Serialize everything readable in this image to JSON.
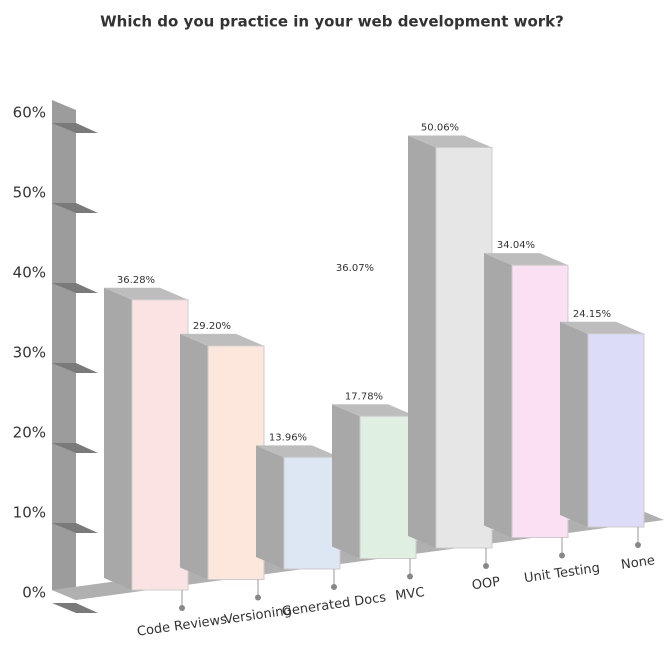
{
  "chart_data": {
    "type": "bar3d",
    "title": "Which do you practice in your web development work?",
    "categories": [
      "Code Reviews",
      "Versioning",
      "Generated Docs",
      "MVC",
      "OOP",
      "Unit Testing",
      "None"
    ],
    "values": [
      36.28,
      29.2,
      13.96,
      17.78,
      50.06,
      34.04,
      24.15
    ],
    "value_labels": [
      "36.28%",
      "29.20%",
      "13.96%",
      "17.78%",
      "50.06%",
      "34.04%",
      "24.15%"
    ],
    "colors": [
      "#fbe3e3",
      "#fde6dc",
      "#dde6f3",
      "#dff0e3",
      "#e6e6e6",
      "#fbdff2",
      "#dcdcf8"
    ],
    "annotations": [
      "36.07%"
    ],
    "ylim": [
      0,
      60
    ],
    "yticks": [
      {
        "value": 0,
        "label": "0%"
      },
      {
        "value": 10,
        "label": "10%"
      },
      {
        "value": 20,
        "label": "20%"
      },
      {
        "value": 30,
        "label": "30%"
      },
      {
        "value": 40,
        "label": "40%"
      },
      {
        "value": 50,
        "label": "50%"
      },
      {
        "value": 60,
        "label": "60%"
      }
    ]
  }
}
